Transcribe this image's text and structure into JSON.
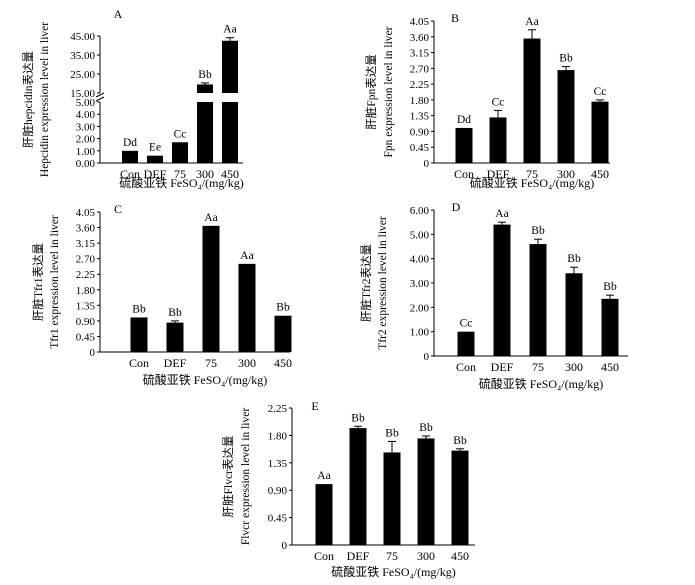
{
  "chart_data": [
    {
      "id": "A",
      "type": "bar",
      "panel_label": "A",
      "ylabel_cn": "肝脏hepcidin表达量",
      "ylabel_en": "Hepcidin expression level in liver",
      "xlabel": "硫酸亚铁 FeSO₄/(mg/kg)",
      "categories": [
        "Con",
        "DEF",
        "75",
        "300",
        "450"
      ],
      "values": [
        1.0,
        0.6,
        1.7,
        19.5,
        42.5
      ],
      "errors": [
        0,
        0,
        0,
        0.8,
        1.6
      ],
      "labels": [
        "Dd",
        "Ee",
        "Cc",
        "Bb",
        "Aa"
      ],
      "broken_axis": true,
      "lower_range": [
        0,
        5
      ],
      "upper_range": [
        15,
        45
      ],
      "ticks_lower": [
        "0.00",
        "1.00",
        "2.00",
        "3.00",
        "4.00",
        "5.00"
      ],
      "ticks_upper": [
        "15.00",
        "25.00",
        "35.00",
        "45.00"
      ]
    },
    {
      "id": "B",
      "type": "bar",
      "panel_label": "B",
      "ylabel_cn": "肝脏Fpn表达量",
      "ylabel_en": "Fpn expression level in liver",
      "xlabel": "硫酸亚铁 FeSO₄/(mg/kg)",
      "categories": [
        "Con",
        "DEF",
        "75",
        "300",
        "450"
      ],
      "values": [
        1.0,
        1.3,
        3.55,
        2.65,
        1.75
      ],
      "errors": [
        0,
        0.2,
        0.25,
        0.1,
        0.05
      ],
      "labels": [
        "Dd",
        "Cc",
        "Aa",
        "Bb",
        "Cc"
      ],
      "ylim": [
        0,
        4.05
      ],
      "ticks": [
        "0",
        "0.45",
        "0.90",
        "1.35",
        "1.80",
        "2.25",
        "2.70",
        "3.15",
        "3.60",
        "4.05"
      ]
    },
    {
      "id": "C",
      "type": "bar",
      "panel_label": "C",
      "ylabel_cn": "肝脏Tfr1表达量",
      "ylabel_en": "Tfr1 expression level in liver",
      "xlabel": "硫酸亚铁 FeSO₄/(mg/kg)",
      "categories": [
        "Con",
        "DEF",
        "75",
        "300",
        "450"
      ],
      "values": [
        1.0,
        0.85,
        3.65,
        2.55,
        1.05
      ],
      "errors": [
        0,
        0.05,
        0,
        0,
        0
      ],
      "labels": [
        "Bb",
        "Bb",
        "Aa",
        "Aa",
        "Bb"
      ],
      "ylim": [
        0,
        4.05
      ],
      "ticks": [
        "0",
        "0.45",
        "0.90",
        "1.35",
        "1.80",
        "2.25",
        "2.70",
        "3.15",
        "3.60",
        "4.05"
      ]
    },
    {
      "id": "D",
      "type": "bar",
      "panel_label": "D",
      "ylabel_cn": "肝脏Tfr2表达量",
      "ylabel_en": "Tfr2 expression level in liver",
      "xlabel": "硫酸亚铁 FeSO₄/(mg/kg)",
      "categories": [
        "Con",
        "DEF",
        "75",
        "300",
        "450"
      ],
      "values": [
        1.0,
        5.4,
        4.6,
        3.4,
        2.35
      ],
      "errors": [
        0,
        0.1,
        0.2,
        0.25,
        0.15
      ],
      "labels": [
        "Cc",
        "Aa",
        "Bb",
        "Bb",
        "Bb"
      ],
      "ylim": [
        0,
        6.0
      ],
      "ticks": [
        "0",
        "1.00",
        "2.00",
        "3.00",
        "4.00",
        "5.00",
        "6.00"
      ]
    },
    {
      "id": "E",
      "type": "bar",
      "panel_label": "E",
      "ylabel_cn": "肝脏Flvcr表达量",
      "ylabel_en": "Flvcr expression level in liver",
      "xlabel": "硫酸亚铁 FeSO₄/(mg/kg)",
      "categories": [
        "Con",
        "DEF",
        "75",
        "300",
        "450"
      ],
      "values": [
        1.0,
        1.92,
        1.52,
        1.75,
        1.55
      ],
      "errors": [
        0,
        0.03,
        0.18,
        0.04,
        0.03
      ],
      "labels": [
        "Aa",
        "Bb",
        "Bb",
        "Bb",
        "Bb"
      ],
      "ylim": [
        0,
        2.25
      ],
      "ticks": [
        "0",
        "0.45",
        "0.90",
        "1.35",
        "1.80",
        "2.25"
      ]
    }
  ]
}
